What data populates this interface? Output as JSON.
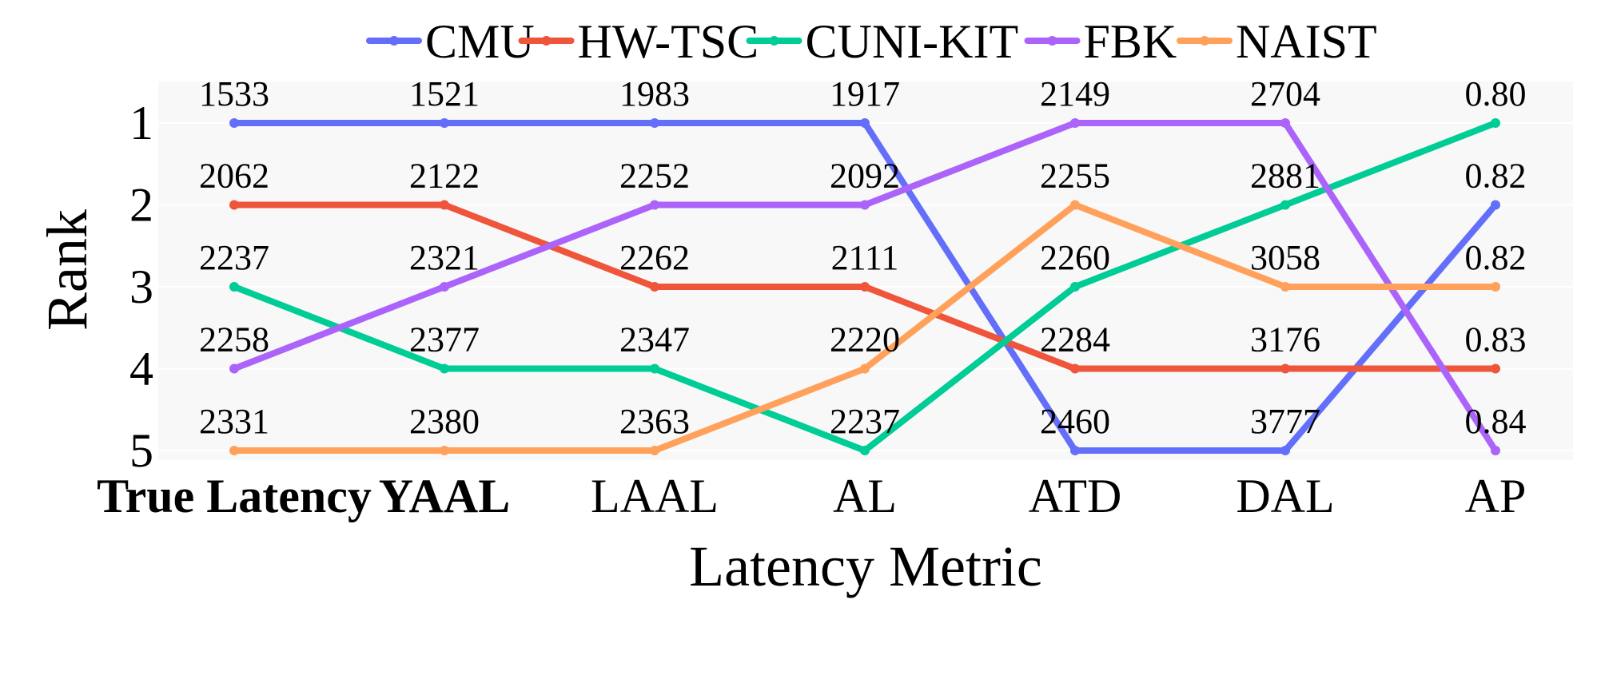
{
  "chart_data": {
    "type": "line",
    "title": "",
    "xlabel": "Latency Metric",
    "ylabel": "Rank",
    "categories": [
      "True Latency",
      "YAAL",
      "LAAL",
      "AL",
      "ATD",
      "DAL",
      "AP"
    ],
    "bold_categories": [
      "True Latency",
      "YAAL"
    ],
    "y_ticks": [
      "1",
      "2",
      "3",
      "4",
      "5"
    ],
    "y_reversed": true,
    "ylim": [
      1,
      5
    ],
    "grid": true,
    "legend_position": "top",
    "series": [
      {
        "name": "CMU",
        "color": "#636EFA",
        "values": [
          1,
          1,
          1,
          1,
          5,
          5,
          2
        ]
      },
      {
        "name": "HW-TSC",
        "color": "#EF553B",
        "values": [
          2,
          2,
          3,
          3,
          4,
          4,
          4
        ]
      },
      {
        "name": "CUNI-KIT",
        "color": "#00CC96",
        "values": [
          3,
          4,
          4,
          5,
          3,
          2,
          1
        ]
      },
      {
        "name": "FBK",
        "color": "#AB63FA",
        "values": [
          4,
          3,
          2,
          2,
          1,
          1,
          5
        ]
      },
      {
        "name": "NAIST",
        "color": "#FFA15A",
        "values": [
          5,
          5,
          5,
          4,
          2,
          3,
          3
        ]
      }
    ],
    "rank_value_labels": [
      [
        "1533",
        "1521",
        "1983",
        "1917",
        "2149",
        "2704",
        "0.80"
      ],
      [
        "2062",
        "2122",
        "2252",
        "2092",
        "2255",
        "2881",
        "0.82"
      ],
      [
        "2237",
        "2321",
        "2262",
        "2111",
        "2260",
        "3058",
        "0.82"
      ],
      [
        "2258",
        "2377",
        "2347",
        "2220",
        "2284",
        "3176",
        "0.83"
      ],
      [
        "2331",
        "2380",
        "2363",
        "2237",
        "2460",
        "3777",
        "0.84"
      ]
    ]
  },
  "colors": {
    "plot_background": "#F8F8F8",
    "grid": "#FFFFFF"
  }
}
